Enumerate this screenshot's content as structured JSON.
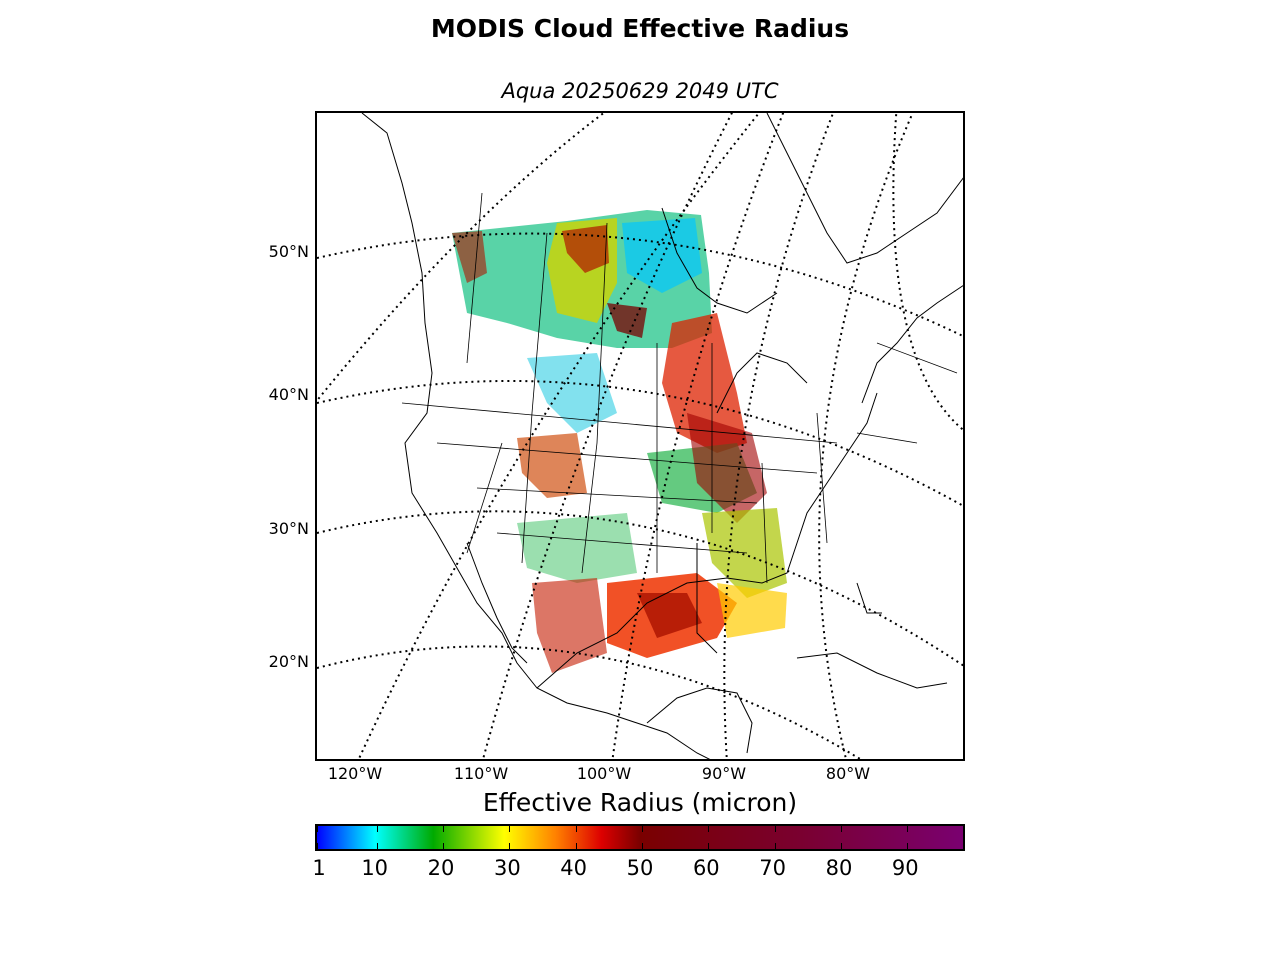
{
  "title": "MODIS Cloud Effective Radius",
  "subtitle": "Aqua 20250629 2049 UTC",
  "lat_labels": [
    "50°N",
    "40°N",
    "30°N",
    "20°N"
  ],
  "lon_labels": [
    "120°W",
    "110°W",
    "100°W",
    "90°W",
    "80°W"
  ],
  "colorbar": {
    "title": "Effective Radius (micron)",
    "min": 1,
    "max": 99,
    "tick_labels": [
      "1",
      "10",
      "20",
      "30",
      "40",
      "50",
      "60",
      "70",
      "80",
      "90"
    ],
    "colors": [
      "#0000ff",
      "#00ffff",
      "#00aa00",
      "#ffff00",
      "#ff8000",
      "#dd0000",
      "#7a0000",
      "#7a0030",
      "#7a0070"
    ]
  }
}
